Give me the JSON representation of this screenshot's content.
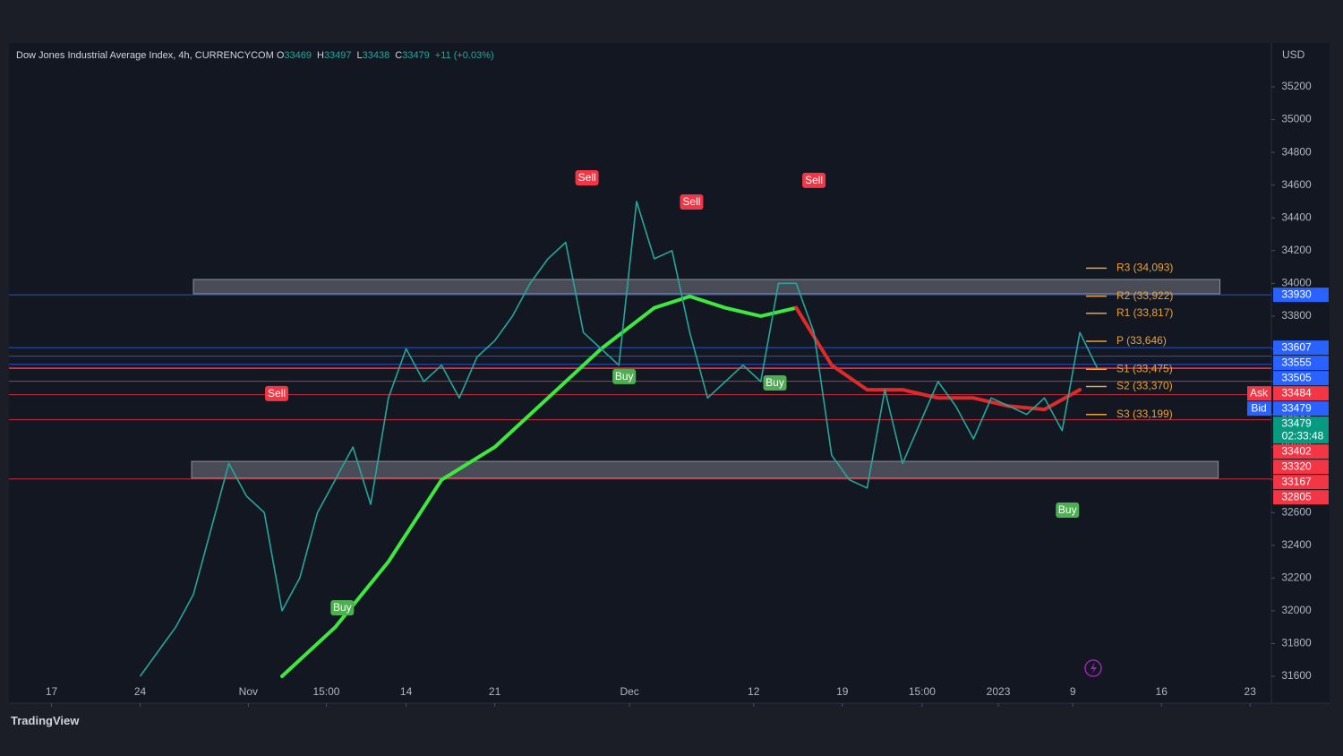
{
  "chart_data": {
    "type": "line",
    "title": "Dow Jones Industrial Average Index, 4h, CURRENCYCOM",
    "legend_values": [
      {
        "label": "O",
        "value": 33469
      },
      {
        "label": "H",
        "value": 33497
      },
      {
        "label": "L",
        "value": 33438
      },
      {
        "label": "C",
        "value": 33479
      }
    ],
    "change": "+11 (+0.03%)",
    "currency": "USD",
    "brand": "TradingView",
    "xlim": [
      -2.4,
      68.8
    ],
    "xticks": [
      {
        "value": 0,
        "label": "17"
      },
      {
        "value": 5,
        "label": "24"
      },
      {
        "value": 11.1,
        "label": "Nov"
      },
      {
        "value": 15.5,
        "label": "15:00"
      },
      {
        "value": 20,
        "label": "14"
      },
      {
        "value": 25,
        "label": "21"
      },
      {
        "value": 32.6,
        "label": "Dec"
      },
      {
        "value": 39.6,
        "label": "12"
      },
      {
        "value": 44.6,
        "label": "19"
      },
      {
        "value": 49.1,
        "label": "15:00"
      },
      {
        "value": 53.4,
        "label": "2023"
      },
      {
        "value": 57.6,
        "label": "9"
      },
      {
        "value": 62.6,
        "label": "16"
      },
      {
        "value": 67.6,
        "label": "23"
      }
    ],
    "ylim": [
      31436,
      35457
    ],
    "yticks": [
      31600,
      31800,
      32000,
      32200,
      32400,
      32600,
      32800,
      33000,
      33200,
      33400,
      33600,
      33800,
      34000,
      34200,
      34400,
      34600,
      34800,
      35000,
      35200
    ],
    "x": [
      5,
      6,
      7,
      8,
      9,
      10,
      11,
      12,
      13,
      14,
      15,
      16,
      17,
      18,
      19,
      20,
      21,
      22,
      23,
      24,
      25,
      26,
      27,
      28,
      29,
      30,
      31,
      32,
      33,
      34,
      35,
      36,
      37,
      38,
      39,
      40,
      41,
      42,
      43,
      44,
      45,
      46,
      47,
      48,
      49,
      50,
      51,
      52,
      53,
      54,
      55,
      56,
      57,
      58,
      59
    ],
    "series": [
      {
        "color": "#26a69a",
        "values": [
          31600,
          31750,
          31900,
          32100,
          32500,
          32900,
          32700,
          32600,
          32000,
          32200,
          32600,
          32800,
          33000,
          32650,
          33300,
          33600,
          33400,
          33500,
          33300,
          33550,
          33650,
          33800,
          34000,
          34150,
          34250,
          33700,
          33600,
          33500,
          34500,
          34150,
          34200,
          33700,
          33300,
          33400,
          33500,
          33400,
          34000,
          34000,
          33700,
          32950,
          32800,
          32750,
          33350,
          32900,
          33150,
          33400,
          33250,
          33050,
          33300,
          33250,
          33200,
          33300,
          33100,
          33700,
          33479
        ]
      }
    ],
    "averages": [
      {
        "color": "#3ee83e",
        "x": [
          13,
          16,
          19,
          22,
          25,
          28,
          31,
          34,
          36,
          38,
          40,
          42
        ],
        "values": [
          31600,
          31900,
          32300,
          32800,
          33000,
          33300,
          33600,
          33850,
          33920,
          33850,
          33800,
          33850
        ]
      },
      {
        "color": "#e02a2a",
        "x": [
          42,
          44,
          46,
          48,
          50,
          52,
          54,
          56,
          58
        ],
        "values": [
          33850,
          33500,
          33350,
          33350,
          33300,
          33300,
          33250,
          33230,
          33350
        ]
      }
    ],
    "zones": [
      {
        "xlim": [
          8.0,
          65.9
        ],
        "ylim": [
          33936,
          34024
        ]
      },
      {
        "xlim": [
          7.9,
          65.8
        ],
        "ylim": [
          32810,
          32913
        ]
      }
    ],
    "price_levels": [
      {
        "value": 33930,
        "color": "#2962ff"
      },
      {
        "value": 33607,
        "color": "#2962ff"
      },
      {
        "value": 33555,
        "color": "#2962ff"
      },
      {
        "value": 33505,
        "color": "#2962ff"
      },
      {
        "value": 33484,
        "color": "#f23645",
        "tag": "Ask"
      },
      {
        "value": 33479,
        "color": "#2962ff",
        "tag": "Bid"
      },
      {
        "value": 33479,
        "color": "#089981",
        "countdown": "02:33:48"
      },
      {
        "value": 33402,
        "color": "#f23645"
      },
      {
        "value": 33320,
        "color": "#f23645"
      },
      {
        "value": 33167,
        "color": "#f23645"
      },
      {
        "value": 32805,
        "color": "#f23645"
      }
    ],
    "pivot_color": "#e8a33a",
    "pivots": [
      {
        "label": "R3 (34,093)",
        "value": 34093
      },
      {
        "label": "R2 (33,922)",
        "value": 33922
      },
      {
        "label": "R1 (33,817)",
        "value": 33817
      },
      {
        "label": "P (33,646)",
        "value": 33646
      },
      {
        "label": "S1 (33,475)",
        "value": 33475
      },
      {
        "label": "S2 (33,370)",
        "value": 33370
      },
      {
        "label": "S3 (33,199)",
        "value": 33199
      }
    ],
    "signals": [
      {
        "label": "Sell",
        "x": 12.7,
        "value": 33324,
        "color": "#f23645"
      },
      {
        "label": "Sell",
        "x": 30.2,
        "value": 34642,
        "color": "#f23645"
      },
      {
        "label": "Sell",
        "x": 36.1,
        "value": 34494,
        "color": "#f23645"
      },
      {
        "label": "Sell",
        "x": 43,
        "value": 34626,
        "color": "#f23645"
      },
      {
        "label": "Buy",
        "x": 16.4,
        "value": 32016,
        "color": "#4caf50"
      },
      {
        "label": "Buy",
        "x": 32.3,
        "value": 33428,
        "color": "#4caf50"
      },
      {
        "label": "Buy",
        "x": 40.8,
        "value": 33389,
        "color": "#4caf50"
      },
      {
        "label": "Buy",
        "x": 57.3,
        "value": 32612,
        "color": "#4caf50"
      }
    ]
  }
}
